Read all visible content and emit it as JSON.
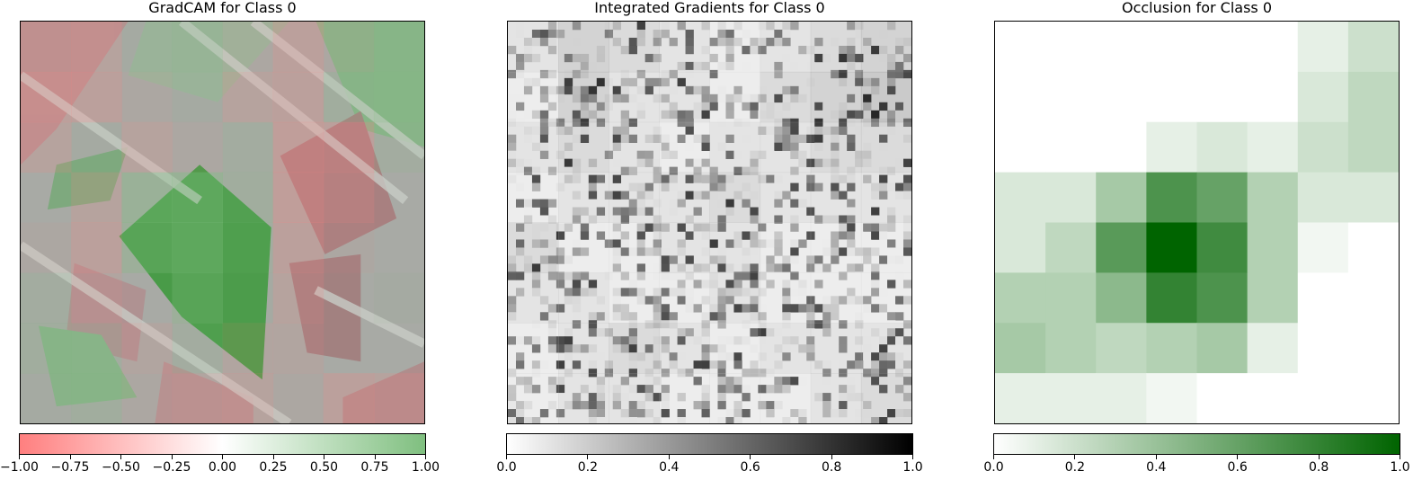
{
  "chart_data": [
    {
      "type": "heatmap",
      "title": "GradCAM for Class 0",
      "colormap": "diverging red-white-green",
      "colors": {
        "low": "#ff7f7f",
        "mid": "#ffffff",
        "high": "#7fbf7f"
      },
      "colorbar": {
        "range": [
          -1.0,
          1.0
        ],
        "ticks": [
          "−1.00",
          "−0.75",
          "−0.50",
          "−0.25",
          "0.00",
          "0.25",
          "0.50",
          "0.75",
          "1.00"
        ]
      },
      "values": [
        [
          -0.2,
          -0.3,
          0.1,
          0.3,
          -0.1,
          -0.4,
          -0.1,
          0.4
        ],
        [
          -0.4,
          -0.4,
          -0.1,
          0.1,
          -0.3,
          -0.4,
          0.3,
          0.5
        ],
        [
          -0.3,
          0.1,
          -0.3,
          -0.1,
          0.2,
          -0.5,
          -0.4,
          0.2
        ],
        [
          0.0,
          -0.3,
          0.6,
          0.7,
          0.3,
          -0.5,
          -0.3,
          0.0
        ],
        [
          -0.1,
          -0.4,
          0.5,
          0.7,
          0.2,
          -0.4,
          -0.1,
          0.0
        ],
        [
          0.2,
          -0.2,
          0.0,
          0.5,
          0.1,
          -0.3,
          0.0,
          0.1
        ],
        [
          0.3,
          0.2,
          -0.2,
          0.2,
          -0.2,
          -0.2,
          0.0,
          0.0
        ],
        [
          0.1,
          0.3,
          -0.1,
          -0.2,
          -0.3,
          -0.1,
          -0.4,
          -0.3
        ]
      ]
    },
    {
      "type": "heatmap",
      "title": "Integrated Gradients for Class 0",
      "colormap": "white-black",
      "colors": {
        "low": "#ffffff",
        "high": "#000000"
      },
      "colorbar": {
        "range": [
          0.0,
          1.0
        ],
        "ticks": [
          "0.0",
          "0.2",
          "0.4",
          "0.6",
          "0.8",
          "1.0"
        ]
      },
      "values": [
        [
          0.3,
          0.5,
          0.4,
          0.3,
          0.2,
          0.3,
          0.4,
          0.5
        ],
        [
          0.2,
          0.5,
          0.3,
          0.3,
          0.2,
          0.4,
          0.5,
          0.6
        ],
        [
          0.3,
          0.4,
          0.3,
          0.2,
          0.3,
          0.3,
          0.4,
          0.4
        ],
        [
          0.2,
          0.3,
          0.3,
          0.3,
          0.4,
          0.3,
          0.3,
          0.3
        ],
        [
          0.4,
          0.2,
          0.2,
          0.3,
          0.3,
          0.2,
          0.2,
          0.2
        ],
        [
          0.3,
          0.3,
          0.2,
          0.2,
          0.3,
          0.2,
          0.2,
          0.2
        ],
        [
          0.2,
          0.3,
          0.4,
          0.3,
          0.2,
          0.3,
          0.3,
          0.3
        ],
        [
          0.2,
          0.3,
          0.3,
          0.2,
          0.2,
          0.2,
          0.3,
          0.4
        ]
      ]
    },
    {
      "type": "heatmap",
      "title": "Occlusion for Class 0",
      "colormap": "white-green",
      "colors": {
        "low": "#ffffff",
        "high": "#006400"
      },
      "colorbar": {
        "range": [
          0.0,
          1.0
        ],
        "ticks": [
          "0.0",
          "0.2",
          "0.4",
          "0.6",
          "0.8",
          "1.0"
        ]
      },
      "values": [
        [
          0,
          0,
          0,
          0,
          0,
          0,
          0.1,
          0.2
        ],
        [
          0,
          0,
          0,
          0,
          0,
          0,
          0.15,
          0.25
        ],
        [
          0,
          0,
          0,
          0.1,
          0.15,
          0.1,
          0.2,
          0.25
        ],
        [
          0.15,
          0.15,
          0.35,
          0.7,
          0.6,
          0.3,
          0.15,
          0.15
        ],
        [
          0.15,
          0.25,
          0.65,
          1.0,
          0.75,
          0.3,
          0.05,
          0
        ],
        [
          0.3,
          0.3,
          0.45,
          0.8,
          0.7,
          0.3,
          0,
          0
        ],
        [
          0.35,
          0.3,
          0.25,
          0.3,
          0.35,
          0.1,
          0,
          0
        ],
        [
          0.1,
          0.1,
          0.1,
          0.05,
          0,
          0,
          0,
          0
        ]
      ]
    }
  ]
}
